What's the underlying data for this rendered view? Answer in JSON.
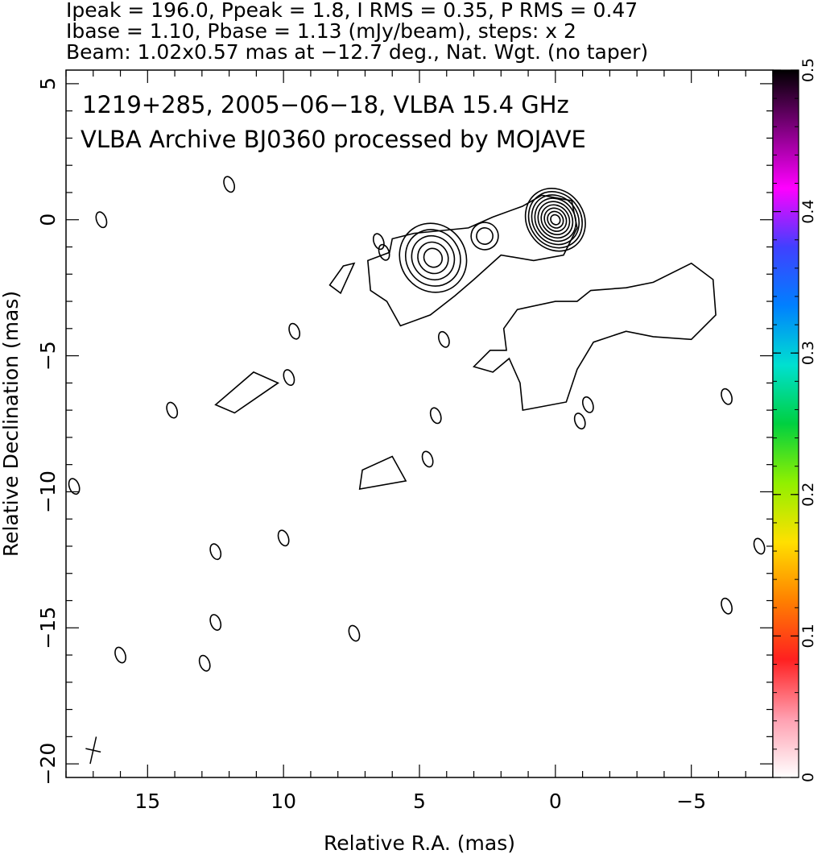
{
  "header": {
    "line1": "Ipeak = 196.0, Ppeak = 1.8, I RMS = 0.35, P RMS = 0.47",
    "line2": "Ibase = 1.10, Pbase = 1.13 (mJy/beam), steps: x 2",
    "line3": "Beam: 1.02x0.57 mas at −12.7 deg., Nat. Wgt. (no taper)"
  },
  "chart_data": {
    "type": "contour",
    "title": "1219+285, 2005−06−18, VLBA 15.4 GHz",
    "subtitle": "VLBA Archive BJ0360 processed by MOJAVE",
    "xlabel": "Relative R.A. (mas)",
    "ylabel": "Relative Declination (mas)",
    "xlim": [
      18,
      -8
    ],
    "ylim": [
      -20.5,
      5.5
    ],
    "x_ticks": [
      15,
      10,
      5,
      0,
      -5
    ],
    "x_tick_labels": [
      "15",
      "10",
      "5",
      "0",
      "−5"
    ],
    "y_ticks": [
      5,
      0,
      -5,
      -10,
      -15,
      -20
    ],
    "y_tick_labels": [
      "5",
      "0",
      "−5",
      "−10",
      "−15",
      "−20"
    ],
    "colorbar": {
      "min": 0,
      "max": 0.5,
      "ticks": [
        0,
        0.1,
        0.2,
        0.3,
        0.4,
        0.5
      ],
      "tick_labels": [
        "0",
        "0.1",
        "0.2",
        "0.3",
        "0.4",
        "0.5"
      ],
      "colors": [
        "#ffffff",
        "#ff9fb0",
        "#ff2020",
        "#ff8000",
        "#ffe000",
        "#90f000",
        "#00d040",
        "#00e0d0",
        "#0080ff",
        "#4040ff",
        "#ff00ff",
        "#800080",
        "#000000"
      ]
    },
    "contours": {
      "core": {
        "x": 0,
        "y": 0,
        "rx_mas": 1.05,
        "ry_mas": 1.2,
        "levels": 9
      },
      "knot": {
        "x": 4.5,
        "y": -1.4,
        "rx_mas": 1.2,
        "ry_mas": 1.3,
        "levels": 5
      },
      "knot2": {
        "x": 2.6,
        "y": -0.6,
        "rx_mas": 0.5,
        "ry_mas": 0.5,
        "levels": 2
      },
      "islands": [
        {
          "x": 12.0,
          "y": 1.3
        },
        {
          "x": 16.7,
          "y": 0.0
        },
        {
          "x": 14.1,
          "y": -7.0
        },
        {
          "x": 9.6,
          "y": -4.1
        },
        {
          "x": 9.8,
          "y": -5.8
        },
        {
          "x": 4.1,
          "y": -4.4
        },
        {
          "x": 4.4,
          "y": -7.2
        },
        {
          "x": 4.7,
          "y": -8.8
        },
        {
          "x": -1.2,
          "y": -6.8
        },
        {
          "x": -0.9,
          "y": -7.4
        },
        {
          "x": -6.3,
          "y": -6.5
        },
        {
          "x": -7.5,
          "y": -12.0
        },
        {
          "x": -6.3,
          "y": -14.2
        },
        {
          "x": 10.0,
          "y": -11.7
        },
        {
          "x": 12.5,
          "y": -12.2
        },
        {
          "x": 12.5,
          "y": -14.8
        },
        {
          "x": 12.9,
          "y": -16.3
        },
        {
          "x": 7.4,
          "y": -15.2
        },
        {
          "x": 16.0,
          "y": -16.0
        },
        {
          "x": 17.7,
          "y": -9.8
        },
        {
          "x": 6.5,
          "y": -0.8
        },
        {
          "x": 6.3,
          "y": -1.2
        }
      ]
    },
    "beam": {
      "major_mas": 1.02,
      "minor_mas": 0.57,
      "pa_deg": -12.7,
      "x": 17.0,
      "y": -19.5
    }
  }
}
